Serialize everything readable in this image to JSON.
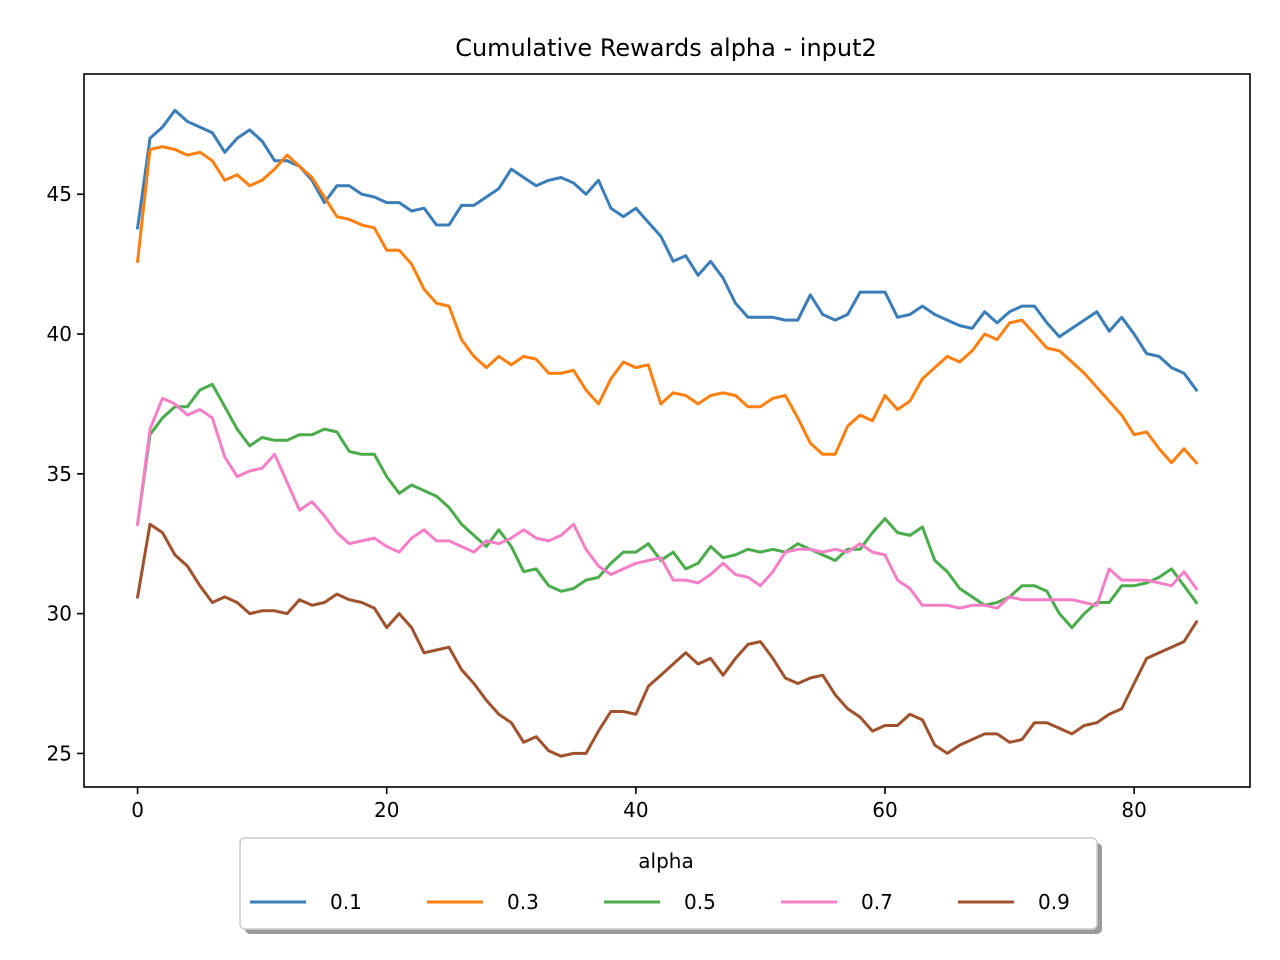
{
  "chart_data": {
    "type": "line",
    "title": "Cumulative Rewards alpha - input2",
    "xlabel": "",
    "ylabel": "",
    "xlim": [
      -4.3,
      89.3
    ],
    "ylim": [
      23.8,
      49.3
    ],
    "xticks": [
      0,
      20,
      40,
      60,
      80
    ],
    "yticks": [
      25,
      30,
      35,
      40,
      45
    ],
    "grid": false,
    "legend": {
      "title": "alpha",
      "placement": "bottom-center",
      "columns": 5
    },
    "x": [
      0,
      1,
      2,
      3,
      4,
      5,
      6,
      7,
      8,
      9,
      10,
      11,
      12,
      13,
      14,
      15,
      16,
      17,
      18,
      19,
      20,
      21,
      22,
      23,
      24,
      25,
      26,
      27,
      28,
      29,
      30,
      31,
      32,
      33,
      34,
      35,
      36,
      37,
      38,
      39,
      40,
      41,
      42,
      43,
      44,
      45,
      46,
      47,
      48,
      49,
      50,
      51,
      52,
      53,
      54,
      55,
      56,
      57,
      58,
      59,
      60,
      61,
      62,
      63,
      64,
      65,
      66,
      67,
      68,
      69,
      70,
      71,
      72,
      73,
      74,
      75,
      76,
      77,
      78,
      79,
      80,
      81,
      82,
      83,
      84,
      85
    ],
    "series": [
      {
        "name": "0.1",
        "color": "#3a7db8",
        "values": [
          43.8,
          47.0,
          47.4,
          48.0,
          47.6,
          47.4,
          47.2,
          46.5,
          47.0,
          47.3,
          46.9,
          46.2,
          46.2,
          46.0,
          45.5,
          44.7,
          45.3,
          45.3,
          45.0,
          44.9,
          44.7,
          44.7,
          44.4,
          44.5,
          43.9,
          43.9,
          44.6,
          44.6,
          44.9,
          45.2,
          45.9,
          45.6,
          45.3,
          45.5,
          45.6,
          45.4,
          45.0,
          45.5,
          44.5,
          44.2,
          44.5,
          44.0,
          43.5,
          42.6,
          42.8,
          42.1,
          42.6,
          42.0,
          41.1,
          40.6,
          40.6,
          40.6,
          40.5,
          40.5,
          41.4,
          40.7,
          40.5,
          40.7,
          41.5,
          41.5,
          41.5,
          40.6,
          40.7,
          41.0,
          40.7,
          40.5,
          40.3,
          40.2,
          40.8,
          40.4,
          40.8,
          41.0,
          41.0,
          40.4,
          39.9,
          40.2,
          40.5,
          40.8,
          40.1,
          40.6,
          40.0,
          39.3,
          39.2,
          38.8,
          38.6,
          38.0
        ]
      },
      {
        "name": "0.3",
        "color": "#ff7f0e",
        "values": [
          42.6,
          46.6,
          46.7,
          46.6,
          46.4,
          46.5,
          46.2,
          45.5,
          45.7,
          45.3,
          45.5,
          45.9,
          46.4,
          46.0,
          45.6,
          44.9,
          44.2,
          44.1,
          43.9,
          43.8,
          43.0,
          43.0,
          42.5,
          41.6,
          41.1,
          41.0,
          39.8,
          39.2,
          38.8,
          39.2,
          38.9,
          39.2,
          39.1,
          38.6,
          38.6,
          38.7,
          38.0,
          37.5,
          38.4,
          39.0,
          38.8,
          38.9,
          37.5,
          37.9,
          37.8,
          37.5,
          37.8,
          37.9,
          37.8,
          37.4,
          37.4,
          37.7,
          37.8,
          37.0,
          36.1,
          35.7,
          35.7,
          36.7,
          37.1,
          36.9,
          37.8,
          37.3,
          37.6,
          38.4,
          38.8,
          39.2,
          39.0,
          39.4,
          40.0,
          39.8,
          40.4,
          40.5,
          40.0,
          39.5,
          39.4,
          39.0,
          38.6,
          38.1,
          37.6,
          37.1,
          36.4,
          36.5,
          35.9,
          35.4,
          35.9,
          35.4
        ]
      },
      {
        "name": "0.5",
        "color": "#4aac4a",
        "values": [
          33.2,
          36.4,
          37.0,
          37.4,
          37.4,
          38.0,
          38.2,
          37.4,
          36.6,
          36.0,
          36.3,
          36.2,
          36.2,
          36.4,
          36.4,
          36.6,
          36.5,
          35.8,
          35.7,
          35.7,
          34.9,
          34.3,
          34.6,
          34.4,
          34.2,
          33.8,
          33.2,
          32.8,
          32.4,
          33.0,
          32.4,
          31.5,
          31.6,
          31.0,
          30.8,
          30.9,
          31.2,
          31.3,
          31.8,
          32.2,
          32.2,
          32.5,
          31.9,
          32.2,
          31.6,
          31.8,
          32.4,
          32.0,
          32.1,
          32.3,
          32.2,
          32.3,
          32.2,
          32.5,
          32.3,
          32.1,
          31.9,
          32.3,
          32.3,
          32.9,
          33.4,
          32.9,
          32.8,
          33.1,
          31.9,
          31.5,
          30.9,
          30.6,
          30.3,
          30.4,
          30.6,
          31.0,
          31.0,
          30.8,
          30.0,
          29.5,
          30.0,
          30.4,
          30.4,
          31.0,
          31.0,
          31.1,
          31.3,
          31.6,
          31.0,
          30.4
        ]
      },
      {
        "name": "0.7",
        "color": "#f47fc7",
        "values": [
          33.2,
          36.6,
          37.7,
          37.5,
          37.1,
          37.3,
          37.0,
          35.6,
          34.9,
          35.1,
          35.2,
          35.7,
          34.7,
          33.7,
          34.0,
          33.5,
          32.9,
          32.5,
          32.6,
          32.7,
          32.4,
          32.2,
          32.7,
          33.0,
          32.6,
          32.6,
          32.4,
          32.2,
          32.6,
          32.5,
          32.7,
          33.0,
          32.7,
          32.6,
          32.8,
          33.2,
          32.3,
          31.7,
          31.4,
          31.6,
          31.8,
          31.9,
          32.0,
          31.2,
          31.2,
          31.1,
          31.4,
          31.8,
          31.4,
          31.3,
          31.0,
          31.5,
          32.2,
          32.3,
          32.3,
          32.2,
          32.3,
          32.2,
          32.5,
          32.2,
          32.1,
          31.2,
          30.9,
          30.3,
          30.3,
          30.3,
          30.2,
          30.3,
          30.3,
          30.2,
          30.6,
          30.5,
          30.5,
          30.5,
          30.5,
          30.5,
          30.4,
          30.3,
          31.6,
          31.2,
          31.2,
          31.2,
          31.1,
          31.0,
          31.5,
          30.9
        ]
      },
      {
        "name": "0.9",
        "color": "#a0522d",
        "values": [
          30.6,
          33.2,
          32.9,
          32.1,
          31.7,
          31.0,
          30.4,
          30.6,
          30.4,
          30.0,
          30.1,
          30.1,
          30.0,
          30.5,
          30.3,
          30.4,
          30.7,
          30.5,
          30.4,
          30.2,
          29.5,
          30.0,
          29.5,
          28.6,
          28.7,
          28.8,
          28.0,
          27.5,
          26.9,
          26.4,
          26.1,
          25.4,
          25.6,
          25.1,
          24.9,
          25.0,
          25.0,
          25.8,
          26.5,
          26.5,
          26.4,
          27.4,
          27.8,
          28.2,
          28.6,
          28.2,
          28.4,
          27.8,
          28.4,
          28.9,
          29.0,
          28.4,
          27.7,
          27.5,
          27.7,
          27.8,
          27.1,
          26.6,
          26.3,
          25.8,
          26.0,
          26.0,
          26.4,
          26.2,
          25.3,
          25.0,
          25.3,
          25.5,
          25.7,
          25.7,
          25.4,
          25.5,
          26.1,
          26.1,
          25.9,
          25.7,
          26.0,
          26.1,
          26.4,
          26.6,
          27.5,
          28.4,
          28.6,
          28.8,
          29.0,
          29.7
        ]
      }
    ]
  }
}
